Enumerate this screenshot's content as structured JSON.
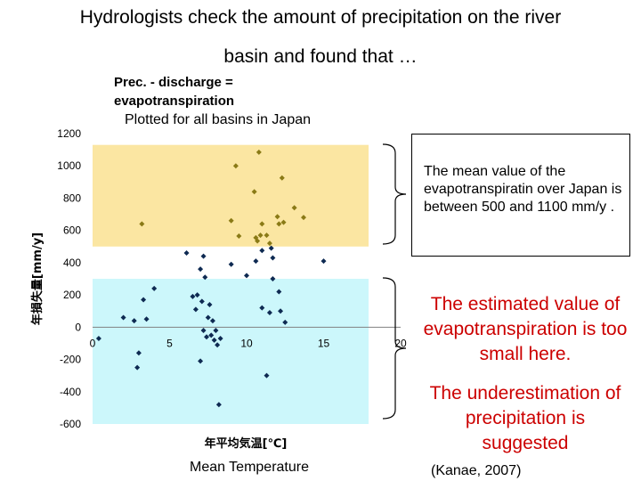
{
  "slide": {
    "title_line1": "Hydrologists check the amount of precipitation on the river",
    "title_line2": "basin and found that …",
    "equation_line1": "Prec. -  discharge =",
    "equation_line2": "evapotranspiration",
    "plotted_note": "Plotted for all basins in Japan",
    "mean_box_text": "The mean value of the evapotranspiratin over Japan is between 500 and 1100 mm/y .",
    "estimated_text": "The estimated value of evapotranspiration is too small here.",
    "underestimation_text": "The underestimation of precipitation is suggested",
    "mean_temperature_caption": "Mean Temperature",
    "citation": "(Kanae, 2007)",
    "colors": {
      "upper_band": "#fbe6a2",
      "lower_band": "#ccf7fb",
      "red_text": "#cc0000",
      "marker_upper": "#8a7a16",
      "marker_lower": "#0e2a52"
    }
  },
  "chart_data": {
    "type": "scatter",
    "xlabel": "年平均気温[℃]",
    "ylabel": "年損失量[mm/y]",
    "xlim": [
      0,
      20
    ],
    "ylim": [
      -600,
      1200
    ],
    "x_ticks": [
      0,
      5,
      10,
      15,
      20
    ],
    "y_ticks": [
      1200,
      1000,
      800,
      600,
      400,
      200,
      0,
      -200,
      -400,
      -600
    ],
    "bands": [
      {
        "y_from": 500,
        "y_to": 1130
      },
      {
        "y_from": -600,
        "y_to": 300
      }
    ],
    "points_upper": [
      [
        3.2,
        640
      ],
      [
        9.3,
        1000
      ],
      [
        10.5,
        840
      ],
      [
        10.8,
        1085
      ],
      [
        12.3,
        925
      ],
      [
        9.0,
        660
      ],
      [
        9.5,
        565
      ],
      [
        10.6,
        555
      ],
      [
        10.9,
        570
      ],
      [
        11.0,
        640
      ],
      [
        11.3,
        570
      ],
      [
        11.5,
        520
      ],
      [
        12.0,
        685
      ],
      [
        12.1,
        640
      ],
      [
        12.4,
        650
      ],
      [
        13.1,
        740
      ],
      [
        13.7,
        680
      ],
      [
        10.7,
        535
      ]
    ],
    "points_lower": [
      [
        0.4,
        -70
      ],
      [
        2.0,
        60
      ],
      [
        2.7,
        40
      ],
      [
        2.9,
        -250
      ],
      [
        3.0,
        -160
      ],
      [
        3.3,
        170
      ],
      [
        3.5,
        50
      ],
      [
        4.0,
        240
      ],
      [
        6.1,
        460
      ],
      [
        7.2,
        440
      ],
      [
        7.0,
        360
      ],
      [
        7.3,
        310
      ],
      [
        6.5,
        190
      ],
      [
        6.8,
        200
      ],
      [
        7.1,
        160
      ],
      [
        6.7,
        110
      ],
      [
        7.5,
        60
      ],
      [
        7.6,
        140
      ],
      [
        7.8,
        40
      ],
      [
        7.2,
        -20
      ],
      [
        7.4,
        -60
      ],
      [
        7.9,
        -80
      ],
      [
        8.0,
        -20
      ],
      [
        8.1,
        -110
      ],
      [
        7.7,
        -50
      ],
      [
        8.3,
        -70
      ],
      [
        7.0,
        -210
      ],
      [
        8.2,
        -480
      ],
      [
        9.0,
        390
      ],
      [
        10.0,
        320
      ],
      [
        11.0,
        120
      ],
      [
        11.5,
        90
      ],
      [
        11.7,
        300
      ],
      [
        12.1,
        220
      ],
      [
        12.2,
        100
      ],
      [
        12.5,
        30
      ],
      [
        11.3,
        -300
      ],
      [
        11.0,
        475
      ],
      [
        11.6,
        490
      ],
      [
        11.7,
        430
      ],
      [
        15.0,
        410
      ],
      [
        10.6,
        410
      ]
    ]
  }
}
